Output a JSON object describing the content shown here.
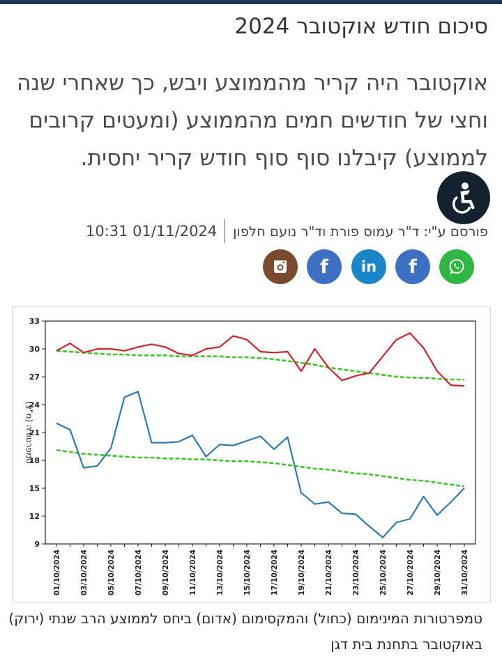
{
  "article": {
    "title": "סיכום חודש אוקטובר 2024",
    "lead": "אוקטובר היה קריר מהממוצע ויבש, כך שאחרי שנה וחצי של חודשים חמים מהממוצע (ומעטים קרובים לממוצע) קיבלנו סוף סוף חודש קריר יחסית.",
    "author": "פורסם ע\"י: ד\"ר עמוס פורת וד\"ר נועם חלפון",
    "date": "10:31 01/11/2024",
    "caption": "טמפרטורות המינימום (כחול) והמקסימום (אדום) ביחס לממוצע הרב שנתי (ירוק) באוקטובר בתחנת בית דגן"
  },
  "share": [
    {
      "name": "whatsapp",
      "color": "#2eb843"
    },
    {
      "name": "facebook",
      "color": "#3b70c4",
      "glyph": "f"
    },
    {
      "name": "linkedin",
      "color": "#1b86c7",
      "glyph": "in"
    },
    {
      "name": "facebook",
      "color": "#3b70c4",
      "glyph": "f"
    },
    {
      "name": "instagram",
      "color": "#7a4a2e"
    }
  ],
  "accessibility": {
    "icon": "accessibility-icon",
    "color": "#14212e"
  },
  "chart_data": {
    "type": "line",
    "ylabel": "טמפרטורה (מ\"צ)",
    "ylim": [
      9,
      33
    ],
    "yticks": [
      9,
      12,
      15,
      18,
      21,
      24,
      27,
      30,
      33
    ],
    "x": [
      "01/10/2024",
      "02/10/2024",
      "03/10/2024",
      "04/10/2024",
      "05/10/2024",
      "06/10/2024",
      "07/10/2024",
      "08/10/2024",
      "09/10/2024",
      "10/10/2024",
      "11/10/2024",
      "12/10/2024",
      "13/10/2024",
      "14/10/2024",
      "15/10/2024",
      "16/10/2024",
      "17/10/2024",
      "18/10/2024",
      "19/10/2024",
      "20/10/2024",
      "21/10/2024",
      "22/10/2024",
      "23/10/2024",
      "24/10/2024",
      "25/10/2024",
      "26/10/2024",
      "27/10/2024",
      "28/10/2024",
      "29/10/2024",
      "30/10/2024",
      "31/10/2024"
    ],
    "x_tick_labels": [
      "01/10/2024",
      "03/10/2024",
      "05/10/2024",
      "07/10/2024",
      "09/10/2024",
      "11/10/2024",
      "13/10/2024",
      "15/10/2024",
      "17/10/2024",
      "19/10/2024",
      "21/10/2024",
      "23/10/2024",
      "25/10/2024",
      "27/10/2024",
      "29/10/2024",
      "31/10/2024"
    ],
    "grid": false,
    "series": [
      {
        "color": "#d42027",
        "style": "solid",
        "values": [
          29.8,
          30.6,
          29.6,
          30.0,
          30.0,
          29.8,
          30.2,
          30.5,
          30.2,
          29.5,
          29.3,
          30.0,
          30.2,
          31.4,
          31.0,
          29.7,
          29.6,
          29.7,
          27.6,
          30.0,
          28.0,
          26.6,
          27.1,
          27.4,
          29.2,
          31.0,
          31.7,
          30.1,
          27.6,
          26.1,
          26.0
        ]
      },
      {
        "color": "#2a7ab3",
        "style": "solid",
        "values": [
          22.0,
          21.3,
          17.2,
          17.4,
          19.3,
          24.8,
          25.4,
          19.9,
          19.9,
          20.0,
          20.7,
          18.4,
          19.7,
          19.6,
          20.1,
          20.6,
          19.2,
          20.5,
          14.5,
          13.3,
          13.5,
          12.3,
          12.2,
          10.9,
          9.7,
          11.3,
          11.7,
          14.1,
          12.1,
          13.5,
          15.0
        ]
      },
      {
        "color": "#35c91f",
        "style": "dashed",
        "values": [
          29.8,
          29.7,
          29.6,
          29.5,
          29.4,
          29.4,
          29.3,
          29.3,
          29.3,
          29.2,
          29.2,
          29.2,
          29.2,
          29.1,
          29.1,
          29.0,
          28.9,
          28.7,
          28.5,
          28.3,
          28.0,
          27.8,
          27.6,
          27.4,
          27.2,
          27.0,
          26.9,
          26.9,
          26.8,
          26.7,
          26.7
        ]
      },
      {
        "color": "#35c91f",
        "style": "dashed",
        "values": [
          19.1,
          18.9,
          18.7,
          18.6,
          18.5,
          18.4,
          18.3,
          18.3,
          18.2,
          18.2,
          18.1,
          18.1,
          18.0,
          17.9,
          17.9,
          17.8,
          17.7,
          17.5,
          17.3,
          17.1,
          17.0,
          16.8,
          16.6,
          16.5,
          16.3,
          16.1,
          15.9,
          15.8,
          15.6,
          15.4,
          15.2
        ]
      }
    ]
  }
}
